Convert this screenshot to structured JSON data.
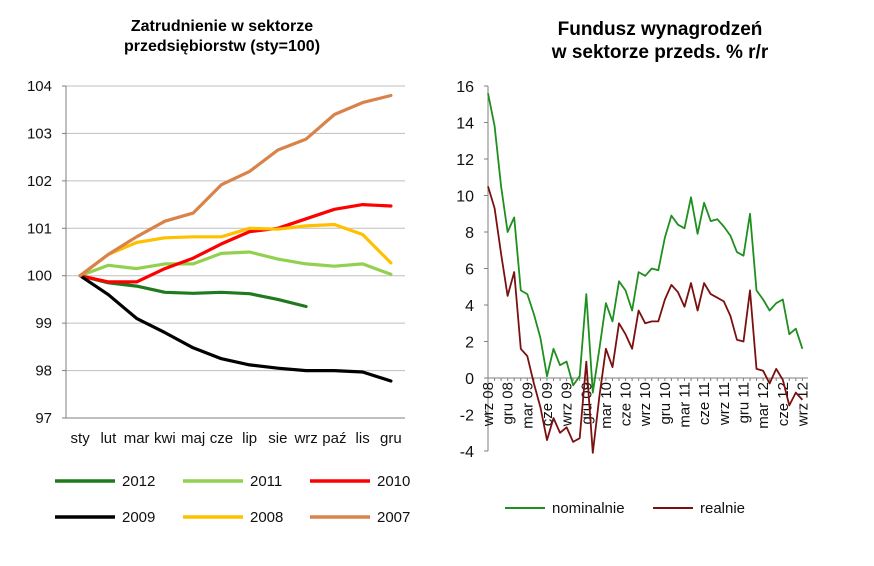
{
  "chart_data": [
    {
      "type": "line",
      "title_lines": [
        "Zatrudnienie w sektorze",
        "przedsiębiorstw (sty=100)"
      ],
      "categories": [
        "sty",
        "lut",
        "mar",
        "kwi",
        "maj",
        "cze",
        "lip",
        "sie",
        "wrz",
        "paź",
        "lis",
        "gru"
      ],
      "ylim": [
        97,
        104
      ],
      "yticks": [
        "97",
        "98",
        "99",
        "100",
        "101",
        "102",
        "103",
        "104"
      ],
      "grid": true,
      "legend_position": "bottom",
      "series": [
        {
          "name": "2012",
          "color": "#1f7a1f",
          "values": [
            100,
            99.85,
            99.78,
            99.65,
            99.63,
            99.65,
            99.62,
            99.5,
            99.35,
            null,
            null,
            null
          ]
        },
        {
          "name": "2011",
          "color": "#92d050",
          "values": [
            100,
            100.22,
            100.15,
            100.25,
            100.25,
            100.47,
            100.5,
            100.35,
            100.25,
            100.2,
            100.25,
            100.03
          ]
        },
        {
          "name": "2010",
          "color": "#ff0000",
          "values": [
            100,
            99.87,
            99.87,
            100.15,
            100.37,
            100.67,
            100.93,
            101.0,
            101.2,
            101.4,
            101.5,
            101.47
          ]
        },
        {
          "name": "2009",
          "color": "#000000",
          "values": [
            100,
            99.6,
            99.1,
            98.8,
            98.48,
            98.25,
            98.12,
            98.05,
            98.0,
            98.0,
            97.97,
            97.78
          ]
        },
        {
          "name": "2008",
          "color": "#ffc000",
          "values": [
            100,
            100.45,
            100.7,
            100.8,
            100.82,
            100.82,
            101.0,
            100.98,
            101.05,
            101.08,
            100.87,
            100.27
          ]
        },
        {
          "name": "2007",
          "color": "#d9824a",
          "values": [
            100,
            100.45,
            100.82,
            101.15,
            101.32,
            101.92,
            102.2,
            102.65,
            102.88,
            103.4,
            103.65,
            103.8
          ]
        }
      ]
    },
    {
      "type": "line",
      "title_lines": [
        "Fundusz wynagrodzeń",
        "w sektorze przeds. % r/r"
      ],
      "x_tick_labels": [
        "wrz 08",
        "gru 08",
        "mar 09",
        "cze 09",
        "wrz 09",
        "gru 09",
        "mar 10",
        "cze 10",
        "wrz 10",
        "gru 10",
        "mar 11",
        "cze 11",
        "wrz 11",
        "gru 11",
        "mar 12",
        "cze 12",
        "wrz 12"
      ],
      "ylim": [
        -4,
        16
      ],
      "yticks": [
        "-4",
        "-2",
        "0",
        "2",
        "4",
        "6",
        "8",
        "10",
        "12",
        "14",
        "16"
      ],
      "grid": false,
      "legend_position": "bottom",
      "x": [
        "2008-09",
        "2008-10",
        "2008-11",
        "2008-12",
        "2009-01",
        "2009-02",
        "2009-03",
        "2009-04",
        "2009-05",
        "2009-06",
        "2009-07",
        "2009-08",
        "2009-09",
        "2009-10",
        "2009-11",
        "2009-12",
        "2010-01",
        "2010-02",
        "2010-03",
        "2010-04",
        "2010-05",
        "2010-06",
        "2010-07",
        "2010-08",
        "2010-09",
        "2010-10",
        "2010-11",
        "2010-12",
        "2011-01",
        "2011-02",
        "2011-03",
        "2011-04",
        "2011-05",
        "2011-06",
        "2011-07",
        "2011-08",
        "2011-09",
        "2011-10",
        "2011-11",
        "2011-12",
        "2012-01",
        "2012-02",
        "2012-03",
        "2012-04",
        "2012-05",
        "2012-06",
        "2012-07",
        "2012-08",
        "2012-09"
      ],
      "series": [
        {
          "name": "nominalnie",
          "color": "#1f8f1f",
          "values": [
            15.6,
            13.8,
            10.5,
            8.0,
            8.8,
            4.8,
            4.6,
            3.5,
            2.2,
            0.1,
            1.6,
            0.7,
            0.9,
            -0.4,
            0.1,
            4.6,
            -0.8,
            1.6,
            4.1,
            3.1,
            5.3,
            4.8,
            3.7,
            5.8,
            5.6,
            6.0,
            5.9,
            7.7,
            8.9,
            8.4,
            8.2,
            9.9,
            7.9,
            9.6,
            8.6,
            8.7,
            8.3,
            7.8,
            6.9,
            6.7,
            9.0,
            4.8,
            4.3,
            3.7,
            4.1,
            4.3,
            2.4,
            2.7,
            1.6
          ]
        },
        {
          "name": "realnie",
          "color": "#7b1010",
          "values": [
            10.5,
            9.3,
            6.8,
            4.5,
            5.8,
            1.6,
            1.2,
            -0.3,
            -1.6,
            -3.4,
            -2.2,
            -3.0,
            -2.7,
            -3.5,
            -3.3,
            0.9,
            -4.1,
            -1.0,
            1.6,
            0.6,
            3.0,
            2.4,
            1.6,
            3.7,
            3.0,
            3.1,
            3.1,
            4.3,
            5.1,
            4.7,
            3.9,
            5.2,
            3.7,
            5.2,
            4.6,
            4.4,
            4.2,
            3.4,
            2.1,
            2.0,
            4.8,
            0.5,
            0.4,
            -0.3,
            0.5,
            -0.1,
            -1.5,
            -0.8,
            -1.2
          ]
        }
      ]
    }
  ]
}
